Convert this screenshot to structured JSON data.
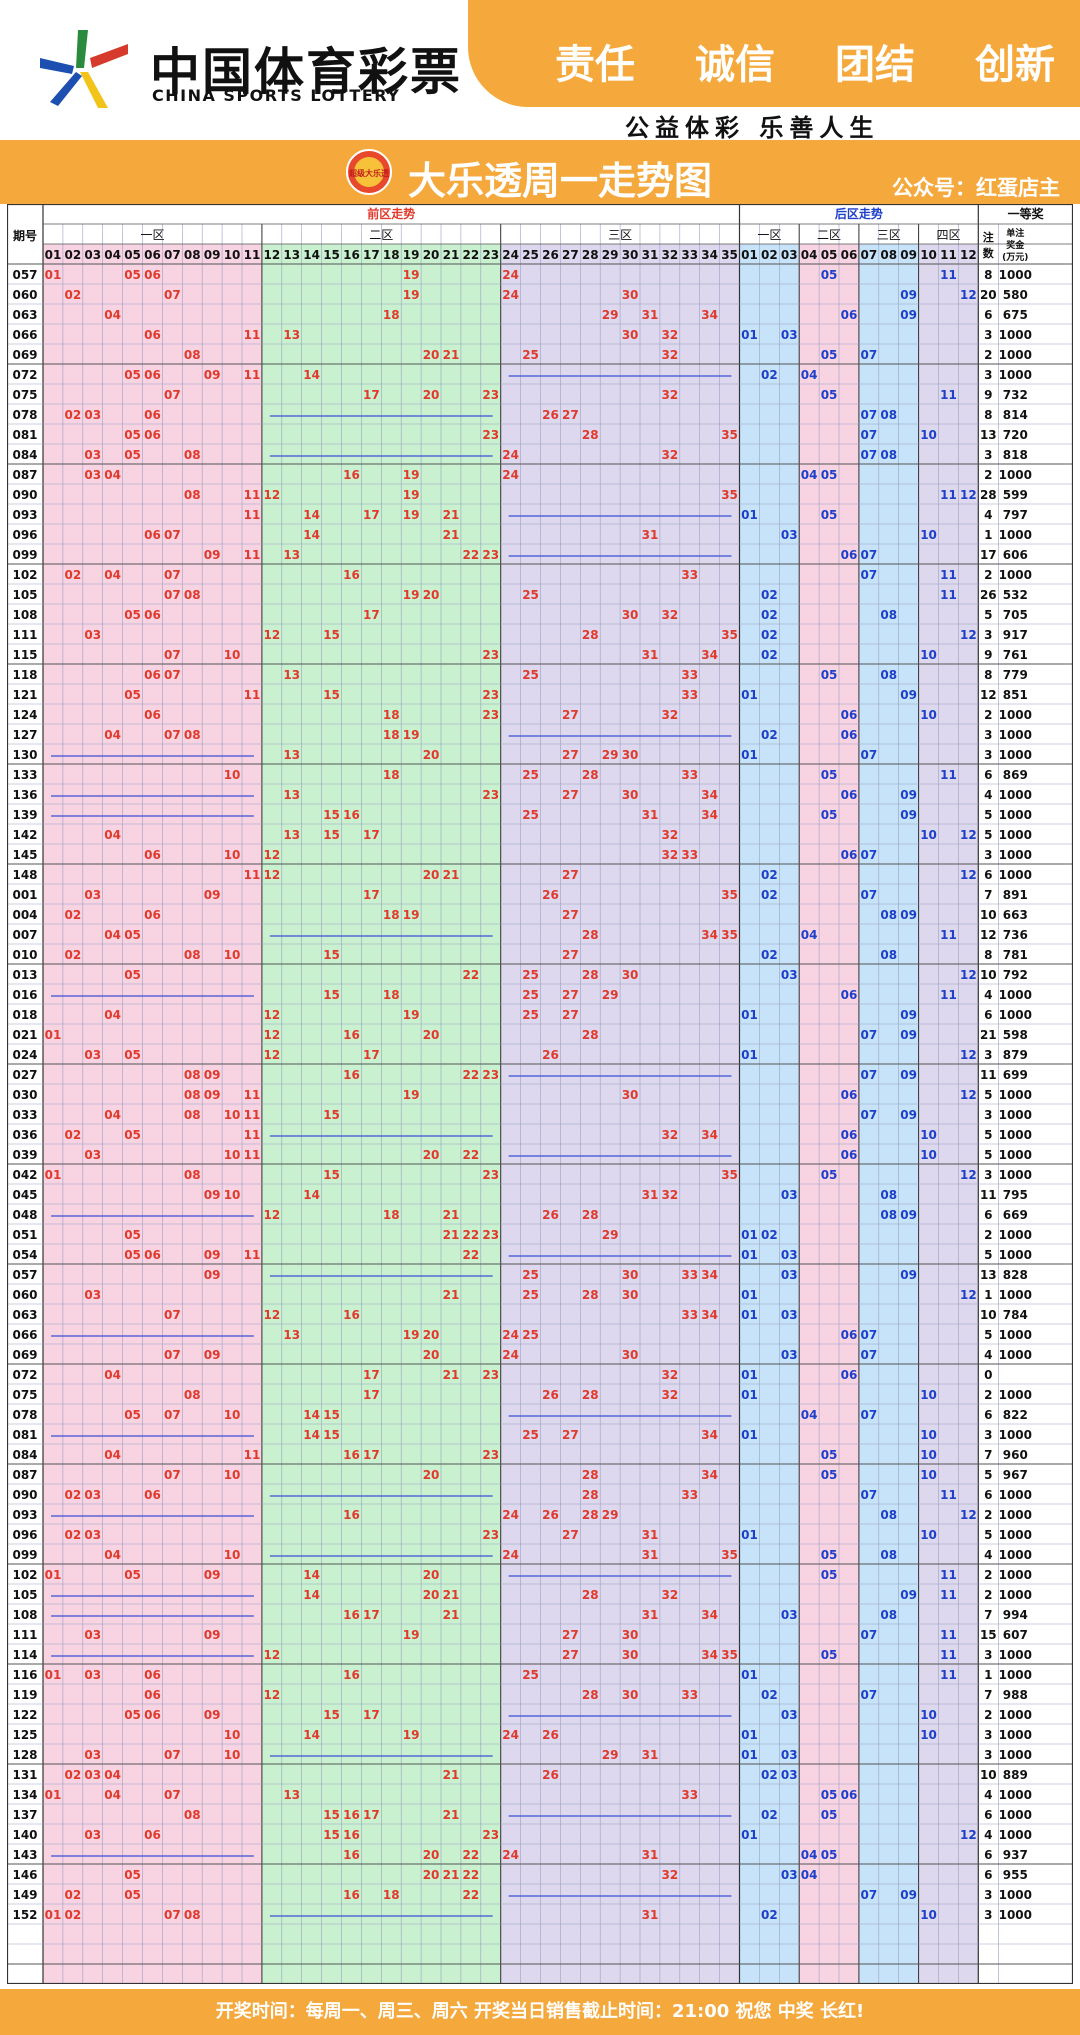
{
  "header": {
    "brand_cn": "中国体育彩票",
    "brand_en": "CHINA SPORTS LOTTERY",
    "slogans": [
      "责任",
      "诚信",
      "团结",
      "创新"
    ],
    "motto": "公益体彩 乐善人生"
  },
  "title": "大乐透周一走势图",
  "badge_text": "超级大乐透",
  "wechat": "公众号：红蛋店主",
  "columns": {
    "period": "期号",
    "front_title": "前区走势",
    "back_title": "后区走势",
    "front_zones": [
      "一区",
      "二区",
      "三区"
    ],
    "back_zones": [
      "一区",
      "二区",
      "三区",
      "四区"
    ],
    "first_prize": "一等奖",
    "count_header": "注数",
    "amount_header": "单注奖金(万元)"
  },
  "draws": [
    {
      "p": "057",
      "f": [
        1,
        5,
        6,
        19,
        24
      ],
      "b": [
        5,
        11
      ],
      "c": "8",
      "a": "1000"
    },
    {
      "p": "060",
      "f": [
        2,
        7,
        19,
        24,
        30
      ],
      "b": [
        9,
        12
      ],
      "c": "20",
      "a": "580"
    },
    {
      "p": "063",
      "f": [
        4,
        18,
        29,
        31,
        34
      ],
      "b": [
        6,
        9
      ],
      "c": "6",
      "a": "675"
    },
    {
      "p": "066",
      "f": [
        6,
        11,
        13,
        30,
        32
      ],
      "b": [
        1,
        3
      ],
      "c": "3",
      "a": "1000"
    },
    {
      "p": "069",
      "f": [
        8,
        20,
        21,
        25,
        32
      ],
      "b": [
        5,
        7
      ],
      "c": "2",
      "a": "1000"
    },
    {
      "p": "072",
      "f": [
        5,
        6,
        9,
        11,
        14
      ],
      "b": [
        2,
        4
      ],
      "c": "3",
      "a": "1000"
    },
    {
      "p": "075",
      "f": [
        7,
        17,
        20,
        23,
        32
      ],
      "b": [
        5,
        11
      ],
      "c": "9",
      "a": "732"
    },
    {
      "p": "078",
      "f": [
        2,
        3,
        6,
        26,
        27
      ],
      "b": [
        7,
        8
      ],
      "c": "8",
      "a": "814"
    },
    {
      "p": "081",
      "f": [
        5,
        6,
        23,
        28,
        35
      ],
      "b": [
        7,
        10
      ],
      "c": "13",
      "a": "720"
    },
    {
      "p": "084",
      "f": [
        3,
        5,
        8,
        24,
        32
      ],
      "b": [
        7,
        8
      ],
      "c": "3",
      "a": "818"
    },
    {
      "p": "087",
      "f": [
        3,
        4,
        16,
        19,
        24
      ],
      "b": [
        4,
        5
      ],
      "c": "2",
      "a": "1000"
    },
    {
      "p": "090",
      "f": [
        8,
        11,
        12,
        19,
        35
      ],
      "b": [
        11,
        12
      ],
      "c": "28",
      "a": "599"
    },
    {
      "p": "093",
      "f": [
        11,
        14,
        17,
        19,
        21
      ],
      "b": [
        1,
        5
      ],
      "c": "4",
      "a": "797"
    },
    {
      "p": "096",
      "f": [
        6,
        7,
        14,
        21,
        31
      ],
      "b": [
        3,
        10
      ],
      "c": "1",
      "a": "1000"
    },
    {
      "p": "099",
      "f": [
        9,
        11,
        13,
        22,
        23
      ],
      "b": [
        6,
        7
      ],
      "c": "17",
      "a": "606"
    },
    {
      "p": "102",
      "f": [
        2,
        4,
        7,
        16,
        33
      ],
      "b": [
        7,
        11
      ],
      "c": "2",
      "a": "1000"
    },
    {
      "p": "105",
      "f": [
        7,
        8,
        19,
        20,
        25
      ],
      "b": [
        2,
        11
      ],
      "c": "26",
      "a": "532"
    },
    {
      "p": "108",
      "f": [
        5,
        6,
        17,
        30,
        32
      ],
      "b": [
        2,
        8
      ],
      "c": "5",
      "a": "705"
    },
    {
      "p": "111",
      "f": [
        3,
        12,
        15,
        28,
        35
      ],
      "b": [
        2,
        12
      ],
      "c": "3",
      "a": "917"
    },
    {
      "p": "115",
      "f": [
        7,
        10,
        23,
        31,
        34
      ],
      "b": [
        2,
        10
      ],
      "c": "9",
      "a": "761"
    },
    {
      "p": "118",
      "f": [
        6,
        7,
        13,
        25,
        33
      ],
      "b": [
        5,
        8
      ],
      "c": "8",
      "a": "779"
    },
    {
      "p": "121",
      "f": [
        5,
        11,
        15,
        23,
        33
      ],
      "b": [
        1,
        9
      ],
      "c": "12",
      "a": "851"
    },
    {
      "p": "124",
      "f": [
        6,
        18,
        23,
        27,
        32
      ],
      "b": [
        6,
        10
      ],
      "c": "2",
      "a": "1000"
    },
    {
      "p": "127",
      "f": [
        4,
        7,
        8,
        18,
        19
      ],
      "b": [
        2,
        6
      ],
      "c": "3",
      "a": "1000"
    },
    {
      "p": "130",
      "f": [
        13,
        20,
        27,
        29,
        30
      ],
      "b": [
        1,
        7
      ],
      "c": "3",
      "a": "1000"
    },
    {
      "p": "133",
      "f": [
        10,
        18,
        25,
        28,
        33
      ],
      "b": [
        5,
        11
      ],
      "c": "6",
      "a": "869"
    },
    {
      "p": "136",
      "f": [
        13,
        23,
        27,
        30,
        34
      ],
      "b": [
        6,
        9
      ],
      "c": "4",
      "a": "1000"
    },
    {
      "p": "139",
      "f": [
        15,
        16,
        25,
        31,
        34
      ],
      "b": [
        5,
        9
      ],
      "c": "5",
      "a": "1000"
    },
    {
      "p": "142",
      "f": [
        4,
        13,
        15,
        17,
        32
      ],
      "b": [
        10,
        12
      ],
      "c": "5",
      "a": "1000"
    },
    {
      "p": "145",
      "f": [
        6,
        10,
        12,
        32,
        33
      ],
      "b": [
        6,
        7
      ],
      "c": "3",
      "a": "1000"
    },
    {
      "p": "148",
      "f": [
        11,
        12,
        20,
        21,
        27
      ],
      "b": [
        2,
        12
      ],
      "c": "6",
      "a": "1000"
    },
    {
      "p": "001",
      "f": [
        3,
        9,
        17,
        26,
        35
      ],
      "b": [
        2,
        7
      ],
      "c": "7",
      "a": "891"
    },
    {
      "p": "004",
      "f": [
        2,
        6,
        18,
        19,
        27
      ],
      "b": [
        8,
        9
      ],
      "c": "10",
      "a": "663"
    },
    {
      "p": "007",
      "f": [
        4,
        5,
        28,
        34,
        35
      ],
      "b": [
        4,
        11
      ],
      "c": "12",
      "a": "736"
    },
    {
      "p": "010",
      "f": [
        2,
        8,
        10,
        15,
        27
      ],
      "b": [
        2,
        8
      ],
      "c": "8",
      "a": "781"
    },
    {
      "p": "013",
      "f": [
        5,
        22,
        25,
        28,
        30
      ],
      "b": [
        3,
        12
      ],
      "c": "10",
      "a": "792"
    },
    {
      "p": "016",
      "f": [
        15,
        18,
        25,
        27,
        29
      ],
      "b": [
        6,
        11
      ],
      "c": "4",
      "a": "1000"
    },
    {
      "p": "018",
      "f": [
        4,
        12,
        19,
        25,
        27
      ],
      "b": [
        1,
        9
      ],
      "c": "6",
      "a": "1000"
    },
    {
      "p": "021",
      "f": [
        1,
        12,
        16,
        20,
        28
      ],
      "b": [
        7,
        9
      ],
      "c": "21",
      "a": "598"
    },
    {
      "p": "024",
      "f": [
        3,
        5,
        12,
        17,
        26
      ],
      "b": [
        1,
        12
      ],
      "c": "3",
      "a": "879"
    },
    {
      "p": "027",
      "f": [
        8,
        9,
        16,
        22,
        23
      ],
      "b": [
        7,
        9
      ],
      "c": "11",
      "a": "699"
    },
    {
      "p": "030",
      "f": [
        8,
        9,
        11,
        19,
        30
      ],
      "b": [
        6,
        12
      ],
      "c": "5",
      "a": "1000"
    },
    {
      "p": "033",
      "f": [
        4,
        8,
        10,
        11,
        15
      ],
      "b": [
        7,
        9
      ],
      "c": "3",
      "a": "1000"
    },
    {
      "p": "036",
      "f": [
        2,
        5,
        11,
        32,
        34
      ],
      "b": [
        6,
        10
      ],
      "c": "5",
      "a": "1000"
    },
    {
      "p": "039",
      "f": [
        3,
        10,
        11,
        20,
        22
      ],
      "b": [
        6,
        10
      ],
      "c": "5",
      "a": "1000"
    },
    {
      "p": "042",
      "f": [
        1,
        8,
        15,
        23,
        35
      ],
      "b": [
        5,
        12
      ],
      "c": "3",
      "a": "1000"
    },
    {
      "p": "045",
      "f": [
        9,
        10,
        14,
        31,
        32
      ],
      "b": [
        3,
        8
      ],
      "c": "11",
      "a": "795"
    },
    {
      "p": "048",
      "f": [
        12,
        18,
        21,
        26,
        28
      ],
      "b": [
        8,
        9
      ],
      "c": "6",
      "a": "669"
    },
    {
      "p": "051",
      "f": [
        5,
        21,
        22,
        23,
        29
      ],
      "b": [
        1,
        2
      ],
      "c": "2",
      "a": "1000"
    },
    {
      "p": "054",
      "f": [
        5,
        6,
        9,
        11,
        22
      ],
      "b": [
        1,
        3
      ],
      "c": "5",
      "a": "1000"
    },
    {
      "p": "057",
      "f": [
        9,
        25,
        30,
        33,
        34
      ],
      "b": [
        3,
        9
      ],
      "c": "13",
      "a": "828"
    },
    {
      "p": "060",
      "f": [
        3,
        21,
        25,
        28,
        30
      ],
      "b": [
        1,
        12
      ],
      "c": "1",
      "a": "1000"
    },
    {
      "p": "063",
      "f": [
        7,
        12,
        16,
        33,
        34
      ],
      "b": [
        1,
        3
      ],
      "c": "10",
      "a": "784"
    },
    {
      "p": "066",
      "f": [
        13,
        19,
        20,
        24,
        25
      ],
      "b": [
        6,
        7
      ],
      "c": "5",
      "a": "1000"
    },
    {
      "p": "069",
      "f": [
        7,
        9,
        20,
        24,
        30
      ],
      "b": [
        3,
        7
      ],
      "c": "4",
      "a": "1000"
    },
    {
      "p": "072",
      "f": [
        4,
        17,
        21,
        23,
        32
      ],
      "b": [
        1,
        6
      ],
      "c": "0",
      "a": ""
    },
    {
      "p": "075",
      "f": [
        8,
        17,
        26,
        28,
        32
      ],
      "b": [
        1,
        10
      ],
      "c": "2",
      "a": "1000"
    },
    {
      "p": "078",
      "f": [
        5,
        7,
        10,
        14,
        15
      ],
      "b": [
        4,
        7
      ],
      "c": "6",
      "a": "822"
    },
    {
      "p": "081",
      "f": [
        14,
        15,
        25,
        27,
        34
      ],
      "b": [
        1,
        10
      ],
      "c": "3",
      "a": "1000"
    },
    {
      "p": "084",
      "f": [
        4,
        11,
        16,
        17,
        23
      ],
      "b": [
        5,
        10
      ],
      "c": "7",
      "a": "960"
    },
    {
      "p": "087",
      "f": [
        7,
        10,
        20,
        28,
        34
      ],
      "b": [
        5,
        10
      ],
      "c": "5",
      "a": "967"
    },
    {
      "p": "090",
      "f": [
        2,
        3,
        6,
        28,
        33
      ],
      "b": [
        7,
        11
      ],
      "c": "6",
      "a": "1000"
    },
    {
      "p": "093",
      "f": [
        16,
        24,
        26,
        28,
        29
      ],
      "b": [
        8,
        12
      ],
      "c": "2",
      "a": "1000"
    },
    {
      "p": "096",
      "f": [
        2,
        3,
        23,
        27,
        31
      ],
      "b": [
        1,
        10
      ],
      "c": "5",
      "a": "1000"
    },
    {
      "p": "099",
      "f": [
        4,
        10,
        24,
        31,
        35
      ],
      "b": [
        5,
        8
      ],
      "c": "4",
      "a": "1000"
    },
    {
      "p": "102",
      "f": [
        1,
        5,
        9,
        14,
        20
      ],
      "b": [
        5,
        11
      ],
      "c": "2",
      "a": "1000"
    },
    {
      "p": "105",
      "f": [
        14,
        20,
        21,
        28,
        32
      ],
      "b": [
        9,
        11
      ],
      "c": "2",
      "a": "1000"
    },
    {
      "p": "108",
      "f": [
        16,
        17,
        21,
        31,
        34
      ],
      "b": [
        3,
        8
      ],
      "c": "7",
      "a": "994"
    },
    {
      "p": "111",
      "f": [
        3,
        9,
        19,
        27,
        30
      ],
      "b": [
        7,
        11
      ],
      "c": "15",
      "a": "607"
    },
    {
      "p": "114",
      "f": [
        12,
        27,
        30,
        34,
        35
      ],
      "b": [
        5,
        11
      ],
      "c": "3",
      "a": "1000"
    },
    {
      "p": "116",
      "f": [
        1,
        3,
        6,
        16,
        25
      ],
      "b": [
        1,
        11
      ],
      "c": "1",
      "a": "1000"
    },
    {
      "p": "119",
      "f": [
        6,
        12,
        28,
        30,
        33
      ],
      "b": [
        2,
        7
      ],
      "c": "7",
      "a": "988"
    },
    {
      "p": "122",
      "f": [
        5,
        6,
        9,
        15,
        17
      ],
      "b": [
        3,
        10
      ],
      "c": "2",
      "a": "1000"
    },
    {
      "p": "125",
      "f": [
        10,
        14,
        19,
        24,
        26
      ],
      "b": [
        1,
        10
      ],
      "c": "3",
      "a": "1000"
    },
    {
      "p": "128",
      "f": [
        3,
        7,
        10,
        29,
        31
      ],
      "b": [
        1,
        3
      ],
      "c": "3",
      "a": "1000"
    },
    {
      "p": "131",
      "f": [
        2,
        3,
        4,
        21,
        26
      ],
      "b": [
        2,
        3
      ],
      "c": "10",
      "a": "889"
    },
    {
      "p": "134",
      "f": [
        1,
        4,
        7,
        13,
        33
      ],
      "b": [
        5,
        6
      ],
      "c": "4",
      "a": "1000"
    },
    {
      "p": "137",
      "f": [
        8,
        15,
        16,
        17,
        21
      ],
      "b": [
        2,
        5
      ],
      "c": "6",
      "a": "1000"
    },
    {
      "p": "140",
      "f": [
        3,
        6,
        15,
        16,
        23
      ],
      "b": [
        1,
        12
      ],
      "c": "4",
      "a": "1000"
    },
    {
      "p": "143",
      "f": [
        16,
        20,
        22,
        24,
        31
      ],
      "b": [
        4,
        5
      ],
      "c": "6",
      "a": "937"
    },
    {
      "p": "146",
      "f": [
        5,
        20,
        21,
        22,
        32
      ],
      "b": [
        3,
        4
      ],
      "c": "6",
      "a": "955"
    },
    {
      "p": "149",
      "f": [
        2,
        5,
        16,
        18,
        22
      ],
      "b": [
        7,
        9
      ],
      "c": "3",
      "a": "1000"
    },
    {
      "p": "152",
      "f": [
        1,
        2,
        7,
        8,
        31
      ],
      "b": [
        2,
        10
      ],
      "c": "3",
      "a": "1000"
    }
  ],
  "blue_lines": [
    {
      "p": "072",
      "s": 2
    },
    {
      "p": "078",
      "s": 1
    },
    {
      "p": "084",
      "s": 1
    },
    {
      "p": "093",
      "s": 2
    },
    {
      "p": "099",
      "s": 2
    },
    {
      "p": "127",
      "s": 2
    },
    {
      "p": "130",
      "s": 0
    },
    {
      "p": "136",
      "s": 0
    },
    {
      "p": "139",
      "s": 0
    },
    {
      "p": "007",
      "s": 1
    },
    {
      "p": "016",
      "s": 0
    },
    {
      "p": "027",
      "s": 2
    },
    {
      "p": "036",
      "s": 1
    },
    {
      "p": "039",
      "s": 2
    },
    {
      "p": "048",
      "s": 0
    },
    {
      "p": "054",
      "s": 2
    },
    {
      "p": "057",
      "s": 1
    },
    {
      "p": "066",
      "s": 0
    },
    {
      "p": "078",
      "s": 2
    },
    {
      "p": "081",
      "s": 0
    },
    {
      "p": "090",
      "s": 1
    },
    {
      "p": "093",
      "s": 0
    },
    {
      "p": "099",
      "s": 1
    },
    {
      "p": "102",
      "s": 2
    },
    {
      "p": "105",
      "s": 0
    },
    {
      "p": "108",
      "s": 0
    },
    {
      "p": "114",
      "s": 0
    },
    {
      "p": "122",
      "s": 2
    },
    {
      "p": "128",
      "s": 1
    },
    {
      "p": "137",
      "s": 2
    },
    {
      "p": "143",
      "s": 0
    },
    {
      "p": "149",
      "s": 2
    },
    {
      "p": "152",
      "s": 1
    }
  ],
  "blank_rows": 3,
  "colors": {
    "orange": "#f5a83c",
    "pink": "#f8d3e2",
    "green": "#c9f1d0",
    "lavender": "#ddd8ee",
    "blue": "#c6e3f9",
    "number_red": "#e03a2c",
    "number_blue": "#1d3fc9",
    "grid": "#9aa0c0"
  },
  "footer": "开奖时间：每周一、周三、周六  开奖当日销售截止时间：21:00  祝您 中奖 长红!"
}
